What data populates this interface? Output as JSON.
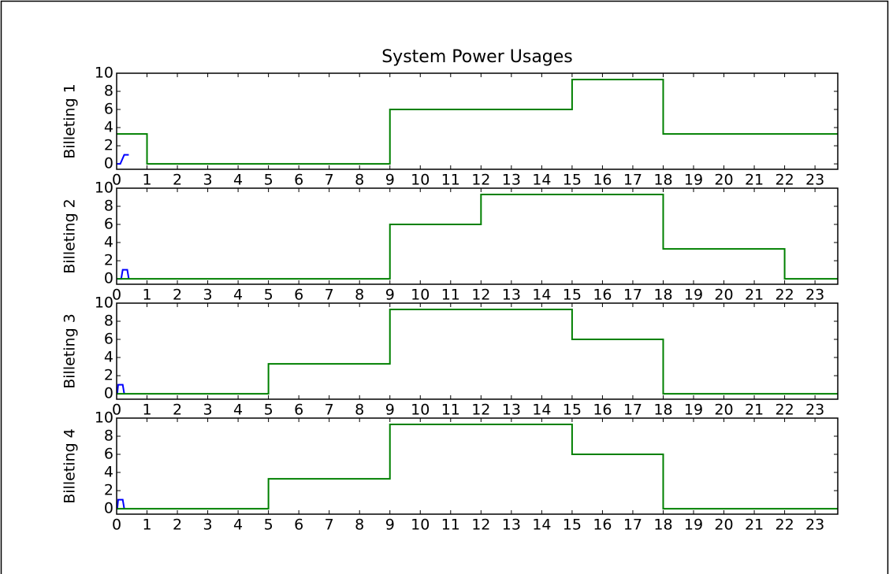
{
  "chart_data": [
    {
      "type": "line",
      "title": "System Power Usages",
      "ylabel": "Billeting 1",
      "xlim": [
        0,
        23.75
      ],
      "ylim": [
        -0.6,
        10
      ],
      "xticks": [
        0,
        1,
        2,
        3,
        4,
        5,
        6,
        7,
        8,
        9,
        10,
        11,
        12,
        13,
        14,
        15,
        16,
        17,
        18,
        19,
        20,
        21,
        22,
        23
      ],
      "yticks": [
        0,
        2,
        4,
        6,
        8,
        10
      ],
      "series": [
        {
          "color": "#0000ff",
          "x": [
            0,
            0.12,
            0.25,
            0.4
          ],
          "values": [
            0,
            0,
            1,
            1
          ]
        },
        {
          "color": "#008000",
          "x": [
            0,
            1,
            1,
            9,
            9,
            15,
            15,
            18,
            18,
            23.75
          ],
          "values": [
            3.3,
            3.3,
            0,
            0,
            6,
            6,
            9.3,
            9.3,
            3.3,
            3.3
          ]
        }
      ]
    },
    {
      "type": "line",
      "ylabel": "Billeting 2",
      "xlim": [
        0,
        23.75
      ],
      "ylim": [
        -0.6,
        10
      ],
      "xticks": [
        0,
        1,
        2,
        3,
        4,
        5,
        6,
        7,
        8,
        9,
        10,
        11,
        12,
        13,
        14,
        15,
        16,
        17,
        18,
        19,
        20,
        21,
        22,
        23
      ],
      "yticks": [
        0,
        2,
        4,
        6,
        8,
        10
      ],
      "series": [
        {
          "color": "#0000ff",
          "x": [
            0,
            0.15,
            0.2,
            0.35,
            0.4
          ],
          "values": [
            0,
            0,
            1,
            1,
            0
          ]
        },
        {
          "color": "#008000",
          "x": [
            0,
            9,
            9,
            12,
            12,
            18,
            18,
            22,
            22,
            23.75
          ],
          "values": [
            0,
            0,
            6,
            6,
            9.3,
            9.3,
            3.3,
            3.3,
            0,
            0
          ]
        }
      ]
    },
    {
      "type": "line",
      "ylabel": "Billeting 3",
      "xlim": [
        0,
        23.75
      ],
      "ylim": [
        -0.6,
        10
      ],
      "xticks": [
        0,
        1,
        2,
        3,
        4,
        5,
        6,
        7,
        8,
        9,
        10,
        11,
        12,
        13,
        14,
        15,
        16,
        17,
        18,
        19,
        20,
        21,
        22,
        23
      ],
      "yticks": [
        0,
        2,
        4,
        6,
        8,
        10
      ],
      "series": [
        {
          "color": "#0000ff",
          "x": [
            0,
            0.02,
            0.05,
            0.2,
            0.25
          ],
          "values": [
            0,
            0,
            1,
            1,
            0
          ]
        },
        {
          "color": "#008000",
          "x": [
            0,
            5,
            5,
            9,
            9,
            15,
            15,
            18,
            18,
            23.75
          ],
          "values": [
            0,
            0,
            3.3,
            3.3,
            9.3,
            9.3,
            6,
            6,
            0,
            0
          ]
        }
      ]
    },
    {
      "type": "line",
      "ylabel": "Billeting 4",
      "xlim": [
        0,
        23.75
      ],
      "ylim": [
        -0.6,
        10
      ],
      "xticks": [
        0,
        1,
        2,
        3,
        4,
        5,
        6,
        7,
        8,
        9,
        10,
        11,
        12,
        13,
        14,
        15,
        16,
        17,
        18,
        19,
        20,
        21,
        22,
        23
      ],
      "yticks": [
        0,
        2,
        4,
        6,
        8,
        10
      ],
      "series": [
        {
          "color": "#0000ff",
          "x": [
            0,
            0.02,
            0.05,
            0.2,
            0.25
          ],
          "values": [
            0,
            0,
            1,
            1,
            0
          ]
        },
        {
          "color": "#008000",
          "x": [
            0,
            5,
            5,
            9,
            9,
            15,
            15,
            18,
            18,
            23.75
          ],
          "values": [
            0,
            0,
            3.3,
            3.3,
            9.3,
            9.3,
            6,
            6,
            0,
            0
          ]
        }
      ]
    }
  ]
}
